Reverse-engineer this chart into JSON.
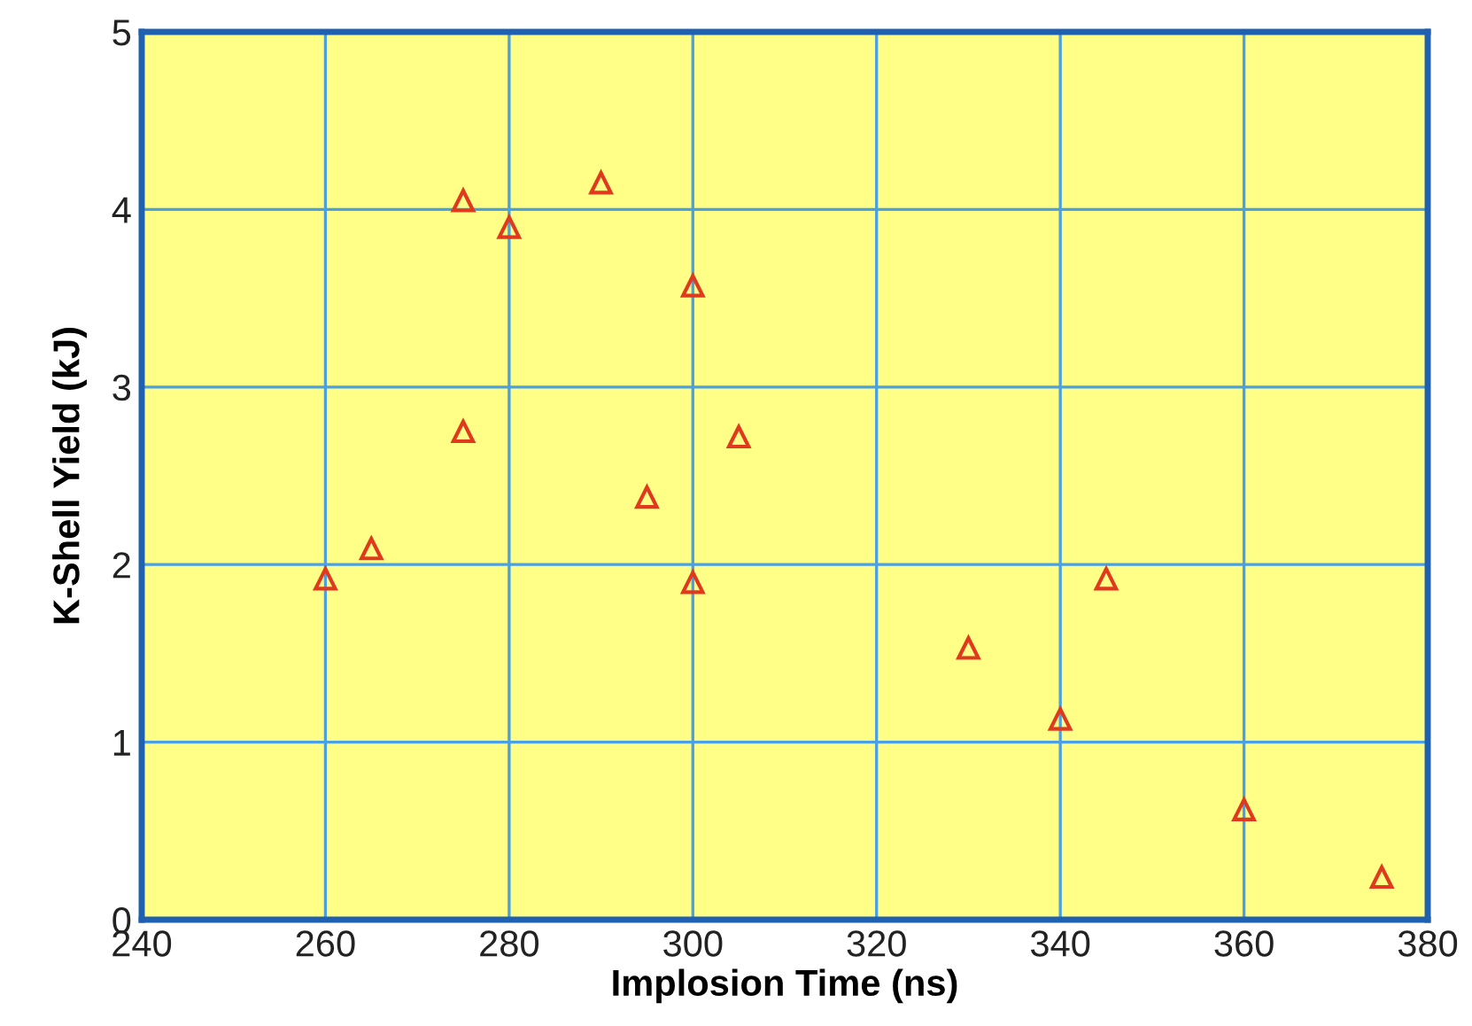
{
  "chart_data": {
    "type": "scatter",
    "xlabel": "Implosion Time (ns)",
    "ylabel": "K-Shell Yield (kJ)",
    "x": [
      260,
      265,
      275,
      275,
      280,
      290,
      295,
      300,
      300,
      305,
      330,
      340,
      345,
      360,
      375
    ],
    "values": [
      1.92,
      2.09,
      4.05,
      2.75,
      3.9,
      4.15,
      2.38,
      3.57,
      1.9,
      2.72,
      1.53,
      1.13,
      1.92,
      0.62,
      0.24
    ],
    "color": "#e03a1e",
    "marker": "triangle",
    "grid": true,
    "xlim": [
      240,
      380
    ],
    "xticks": [
      240,
      260,
      280,
      300,
      320,
      340,
      360,
      380
    ],
    "ylim": [
      0,
      5
    ],
    "yticks": [
      0,
      1,
      2,
      3,
      4,
      5
    ]
  }
}
